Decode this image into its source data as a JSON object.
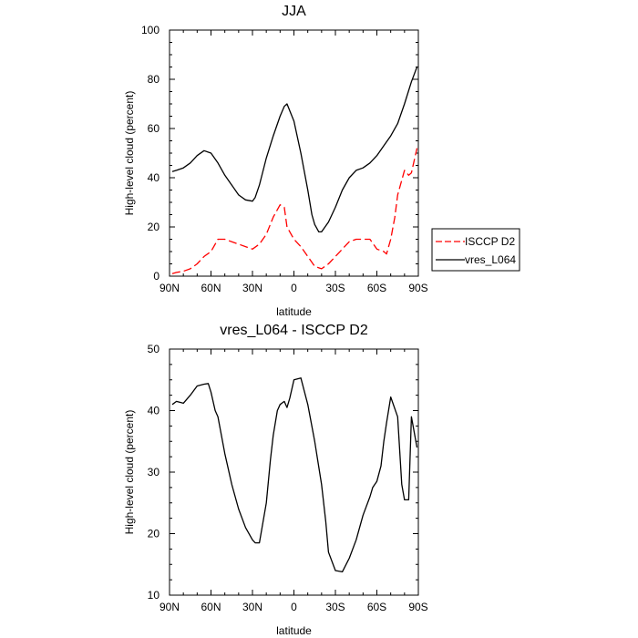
{
  "chart_data": [
    {
      "type": "line",
      "title": "JJA",
      "xlabel": "latitude",
      "ylabel": "High-level cloud (percent)",
      "xlim": [
        90,
        -90
      ],
      "ylim": [
        0,
        100
      ],
      "xticks": [
        90,
        60,
        30,
        0,
        -30,
        -60,
        -90
      ],
      "xtick_labels": [
        "90N",
        "60N",
        "30N",
        "0",
        "30S",
        "60S",
        "90S"
      ],
      "yticks": [
        0,
        20,
        40,
        60,
        80,
        100
      ],
      "ytick_labels": [
        "0",
        "20",
        "40",
        "60",
        "80",
        "100"
      ],
      "legend_placement": "right",
      "series": [
        {
          "name": "ISCCP D2",
          "color": "#ff0000",
          "dash": "dashed",
          "x": [
            88,
            85,
            80,
            75,
            70,
            65,
            60,
            55,
            50,
            45,
            40,
            35,
            30,
            25,
            20,
            15,
            10,
            7,
            5,
            0,
            -5,
            -10,
            -15,
            -20,
            -25,
            -30,
            -35,
            -40,
            -45,
            -50,
            -55,
            -60,
            -65,
            -67,
            -70,
            -73,
            -75,
            -80,
            -83,
            -85,
            -89
          ],
          "y": [
            1,
            1.5,
            2,
            3,
            5,
            8,
            10,
            15,
            15,
            14,
            13,
            12,
            11,
            13,
            17,
            24,
            29,
            28,
            20,
            15,
            12,
            8,
            4,
            3,
            5,
            8,
            11,
            14,
            15,
            15,
            15,
            11,
            10,
            9,
            15,
            24,
            33,
            43,
            41,
            42,
            52
          ]
        },
        {
          "name": "vres_L064",
          "color": "#000000",
          "dash": "solid",
          "x": [
            88,
            85,
            80,
            75,
            70,
            65,
            60,
            55,
            50,
            45,
            40,
            35,
            30,
            28,
            25,
            20,
            15,
            10,
            7,
            5,
            0,
            -5,
            -10,
            -13,
            -15,
            -18,
            -20,
            -25,
            -30,
            -35,
            -40,
            -45,
            -50,
            -55,
            -60,
            -65,
            -70,
            -75,
            -80,
            -85,
            -89
          ],
          "y": [
            42.5,
            43,
            44,
            46,
            49,
            51,
            50,
            46,
            41,
            37,
            33,
            31,
            30.5,
            32,
            37,
            48,
            57,
            65,
            69,
            70,
            63,
            50,
            35,
            25,
            21,
            18,
            18,
            22,
            28,
            35,
            40,
            43,
            44,
            46,
            49,
            53,
            57,
            62,
            70,
            79,
            85
          ]
        }
      ]
    },
    {
      "type": "line",
      "title": "vres_L064 - ISCCP D2",
      "xlabel": "latitude",
      "ylabel": "High-level cloud (percent)",
      "xlim": [
        90,
        -90
      ],
      "ylim": [
        10,
        50
      ],
      "xticks": [
        90,
        60,
        30,
        0,
        -30,
        -60,
        -90
      ],
      "xtick_labels": [
        "90N",
        "60N",
        "30N",
        "0",
        "30S",
        "60S",
        "90S"
      ],
      "yticks": [
        10,
        20,
        30,
        40,
        50
      ],
      "ytick_labels": [
        "10",
        "20",
        "30",
        "40",
        "50"
      ],
      "series": [
        {
          "color": "#000000",
          "dash": "solid",
          "x": [
            88,
            85,
            80,
            75,
            70,
            65,
            62,
            60,
            57,
            55,
            50,
            45,
            40,
            35,
            30,
            28,
            25,
            20,
            17,
            15,
            12,
            10,
            7,
            5,
            3,
            0,
            -5,
            -10,
            -15,
            -20,
            -23,
            -25,
            -30,
            -35,
            -40,
            -45,
            -50,
            -55,
            -57,
            -60,
            -63,
            -65,
            -67,
            -70,
            -75,
            -78,
            -80,
            -83,
            -85,
            -89
          ],
          "y": [
            41,
            41.5,
            41.2,
            42.5,
            44,
            44.3,
            44.4,
            43,
            40,
            39,
            33,
            28,
            24,
            21,
            19,
            18.5,
            18.5,
            25,
            32,
            36,
            40,
            41,
            41.5,
            40.5,
            42,
            45,
            45.3,
            41,
            35,
            28,
            22,
            17,
            14,
            13.8,
            16,
            19,
            23,
            26,
            27.5,
            28.5,
            31,
            35,
            38,
            42.2,
            39,
            28,
            25.5,
            25.5,
            39,
            34
          ]
        }
      ]
    }
  ]
}
